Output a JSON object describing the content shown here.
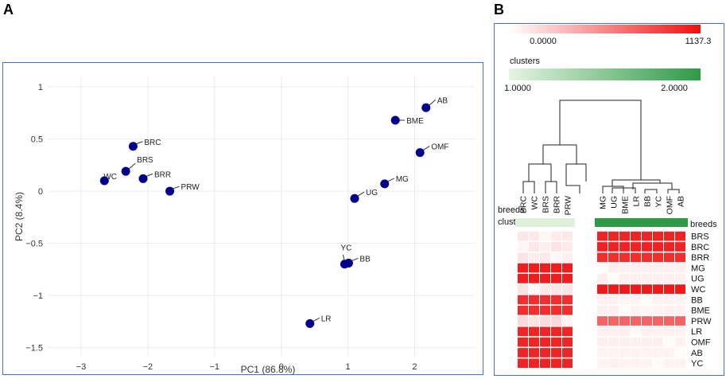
{
  "panels": {
    "a_label": "A",
    "b_label": "B"
  },
  "chart_data": [
    {
      "type": "scatter",
      "title": "",
      "xlabel": "PC1 (86.8%)",
      "ylabel": "PC2 (8.4%)",
      "xlim": [
        -3.5,
        2.9
      ],
      "ylim": [
        -1.58,
        1.1
      ],
      "xticks": [
        -3,
        -2,
        -1,
        0,
        1,
        2
      ],
      "yticks": [
        1,
        0.5,
        0,
        -0.5,
        -1,
        -1.5
      ],
      "xtick_labels": [
        "−3",
        "−2",
        "−1",
        "0",
        "1",
        "2"
      ],
      "ytick_labels": [
        "1",
        "0.5",
        "0",
        "−0.5",
        "−1",
        "−1.5"
      ],
      "grid": true,
      "marker_color": "#00008b",
      "points": [
        {
          "label": "AB",
          "x": 2.17,
          "y": 0.8
        },
        {
          "label": "BME",
          "x": 1.71,
          "y": 0.68
        },
        {
          "label": "OMF",
          "x": 2.08,
          "y": 0.37
        },
        {
          "label": "MG",
          "x": 1.55,
          "y": 0.07
        },
        {
          "label": "UG",
          "x": 1.1,
          "y": -0.07
        },
        {
          "label": "YC",
          "x": 0.95,
          "y": -0.7
        },
        {
          "label": "BB",
          "x": 1.01,
          "y": -0.69
        },
        {
          "label": "LR",
          "x": 0.43,
          "y": -1.27
        },
        {
          "label": "BRC",
          "x": -2.22,
          "y": 0.43
        },
        {
          "label": "BRS",
          "x": -2.33,
          "y": 0.19
        },
        {
          "label": "WC",
          "x": -2.65,
          "y": 0.1
        },
        {
          "label": "BRR",
          "x": -2.07,
          "y": 0.12
        },
        {
          "label": "PRW",
          "x": -1.67,
          "y": 0.0
        }
      ]
    },
    {
      "type": "heatmap",
      "color_scale": {
        "min_label": "0.0000",
        "max_label": "1137.3",
        "min": 0,
        "max": 1137.3,
        "low_color": "#ffffff",
        "high_color": "#ee1111"
      },
      "cluster_scale": {
        "title": "clusters",
        "min_label": "1.0000",
        "max_label": "2.0000",
        "low_color": "#e6f4e2",
        "high_color": "#2e9a48"
      },
      "column_axis_title": "breeds",
      "column_cluster_title": "clusters",
      "row_axis_title": "breeds",
      "columns": [
        "BRC",
        "WC",
        "BRS",
        "BRR",
        "PRW",
        "MG",
        "UG",
        "BME",
        "LR",
        "BB",
        "YC",
        "OMF",
        "AB"
      ],
      "column_clusters": [
        1,
        1,
        1,
        1,
        1,
        2,
        2,
        2,
        2,
        2,
        2,
        2,
        2
      ],
      "rows": [
        "BRS",
        "BRC",
        "BRR",
        "MG",
        "UG",
        "WC",
        "BB",
        "BME",
        "PRW",
        "LR",
        "OMF",
        "AB",
        "YC"
      ],
      "values": [
        [
          120,
          110,
          50,
          90,
          110,
          1050,
          1050,
          1050,
          1050,
          1050,
          1050,
          1050,
          1050
        ],
        [
          50,
          120,
          80,
          130,
          100,
          1050,
          1050,
          1050,
          1050,
          1050,
          1050,
          1050,
          1050
        ],
        [
          130,
          90,
          110,
          40,
          70,
          1000,
          1000,
          1000,
          1000,
          1000,
          1000,
          1000,
          1000
        ],
        [
          1080,
          1080,
          1080,
          1080,
          1080,
          20,
          80,
          70,
          70,
          70,
          70,
          70,
          70
        ],
        [
          1080,
          1080,
          1080,
          1080,
          1080,
          80,
          20,
          70,
          70,
          70,
          70,
          70,
          70
        ],
        [
          140,
          30,
          110,
          120,
          130,
          1100,
          1100,
          1100,
          1100,
          1100,
          1100,
          1100,
          1100
        ],
        [
          1000,
          1000,
          1000,
          1000,
          1000,
          70,
          70,
          50,
          60,
          20,
          60,
          70,
          60
        ],
        [
          1000,
          1000,
          1000,
          1000,
          1000,
          70,
          70,
          20,
          60,
          50,
          60,
          70,
          60
        ],
        [
          180,
          140,
          170,
          180,
          60,
          750,
          750,
          750,
          750,
          750,
          750,
          750,
          750
        ],
        [
          1040,
          1040,
          1040,
          1040,
          1040,
          70,
          70,
          70,
          20,
          70,
          60,
          70,
          60
        ],
        [
          1040,
          1040,
          1040,
          1040,
          1040,
          70,
          70,
          70,
          70,
          70,
          70,
          20,
          60
        ],
        [
          1040,
          1040,
          1040,
          1040,
          1040,
          60,
          60,
          60,
          60,
          60,
          60,
          60,
          20
        ],
        [
          1040,
          1040,
          1040,
          1040,
          1040,
          60,
          70,
          60,
          60,
          60,
          20,
          60,
          60
        ]
      ]
    }
  ]
}
